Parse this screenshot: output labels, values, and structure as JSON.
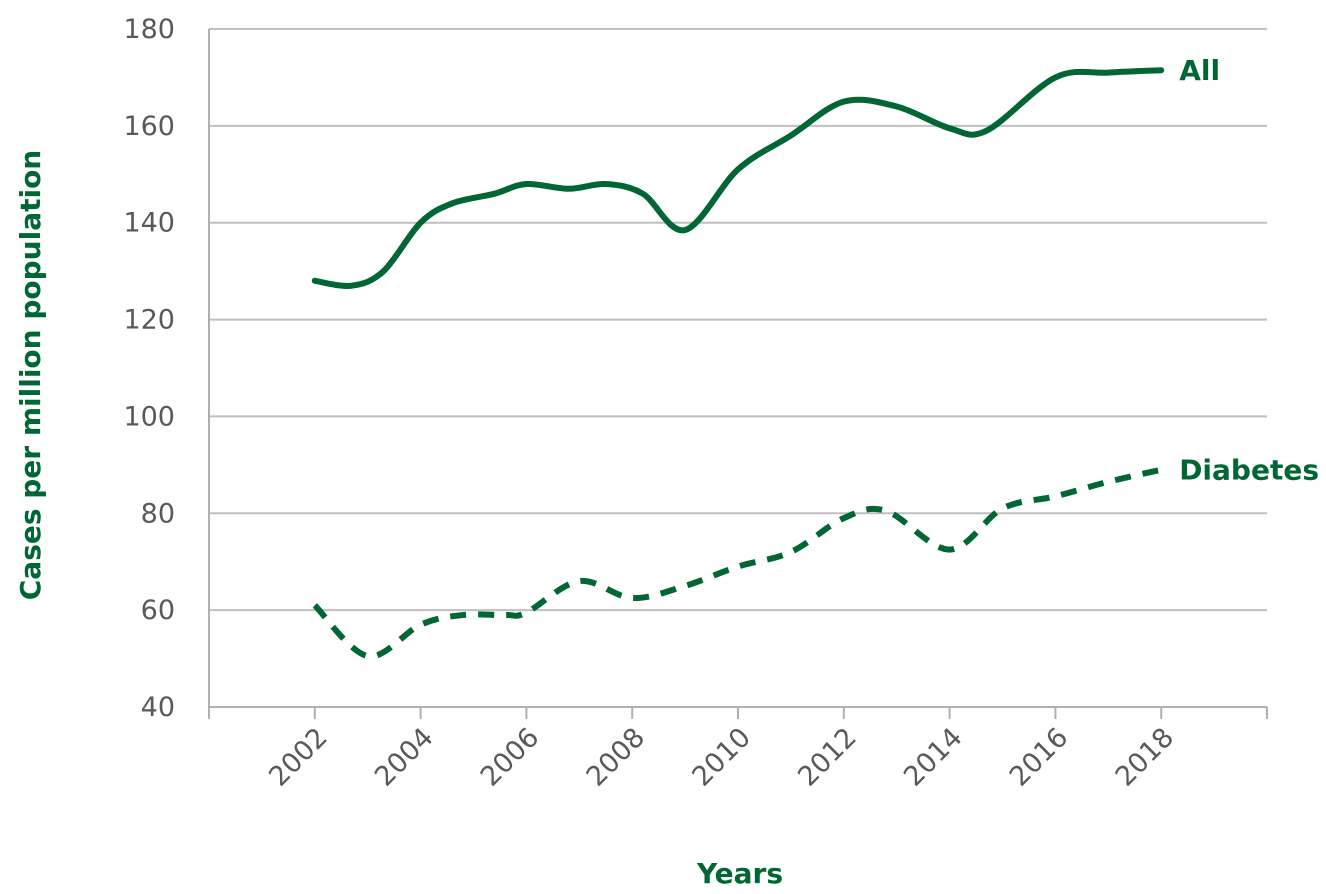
{
  "chart_data": {
    "type": "line",
    "title": "",
    "xlabel": "Years",
    "ylabel": "Cases per million population",
    "x_ticks": [
      "2002",
      "2004",
      "2006",
      "2008",
      "2010",
      "2012",
      "2014",
      "2016",
      "2018"
    ],
    "y_ticks": [
      "40",
      "60",
      "80",
      "100",
      "120",
      "140",
      "160",
      "180"
    ],
    "xlim": [
      2000,
      2020
    ],
    "ylim": [
      40,
      180
    ],
    "grid": "horizontal",
    "legend": "inline labels at line ends",
    "series": [
      {
        "name": "All",
        "style": "solid",
        "color": "#006633",
        "x": [
          2002,
          2002.7,
          2003.3,
          2004,
          2004.6,
          2005.4,
          2006,
          2006.8,
          2007.5,
          2008.2,
          2009,
          2010,
          2011,
          2012,
          2013,
          2014,
          2014.7,
          2016,
          2017,
          2018
        ],
        "y": [
          128,
          127,
          130,
          140,
          144,
          146,
          148,
          147,
          148,
          146,
          138.5,
          151,
          158,
          165,
          164,
          159.5,
          159,
          170,
          171,
          171.5
        ]
      },
      {
        "name": "Diabetes",
        "style": "dashed",
        "color": "#006633",
        "x": [
          2002,
          2003,
          2004,
          2004.8,
          2005.6,
          2006,
          2007,
          2008,
          2009,
          2010,
          2011,
          2012,
          2012.8,
          2014,
          2015,
          2016,
          2017,
          2018
        ],
        "y": [
          61,
          50.5,
          57,
          59,
          59,
          59.5,
          66,
          62.5,
          65,
          69,
          72,
          79,
          80.5,
          72.5,
          81,
          83.5,
          86.5,
          89
        ]
      }
    ]
  }
}
